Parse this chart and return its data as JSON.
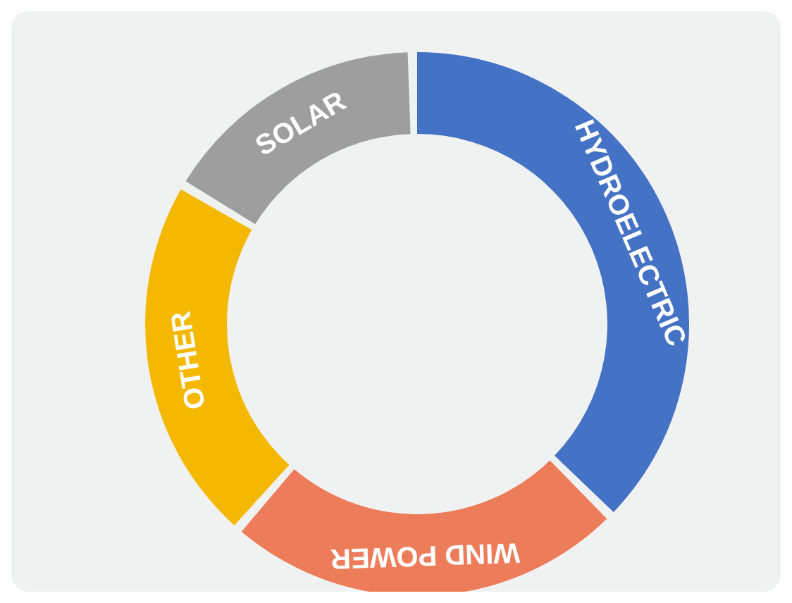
{
  "chart_data": {
    "type": "donut",
    "categories": [
      "HYDROELECTRIC",
      "WIND POWER",
      "OTHER",
      "SOLAR"
    ],
    "values": [
      38,
      24,
      22,
      16
    ],
    "colors": [
      "#4472c4",
      "#ed7d5a",
      "#f5b800",
      "#9e9e9e"
    ],
    "legend": false
  }
}
